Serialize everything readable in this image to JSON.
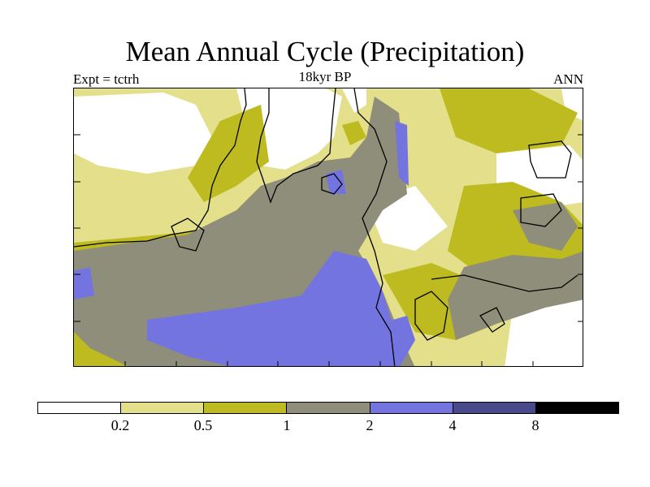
{
  "title": "Mean Annual Cycle (Precipitation)",
  "experiment_label": "Expt = tctrh",
  "period_label": "18kyr BP",
  "season_label": "ANN",
  "colorbar": {
    "colors": [
      "#ffffff",
      "#e3df8a",
      "#bdbb20",
      "#8f8e7a",
      "#7474e0",
      "#4a4a8a",
      "#000000"
    ],
    "tick_labels": [
      "0.2",
      "0.5",
      "1",
      "2",
      "4",
      "8"
    ]
  }
}
